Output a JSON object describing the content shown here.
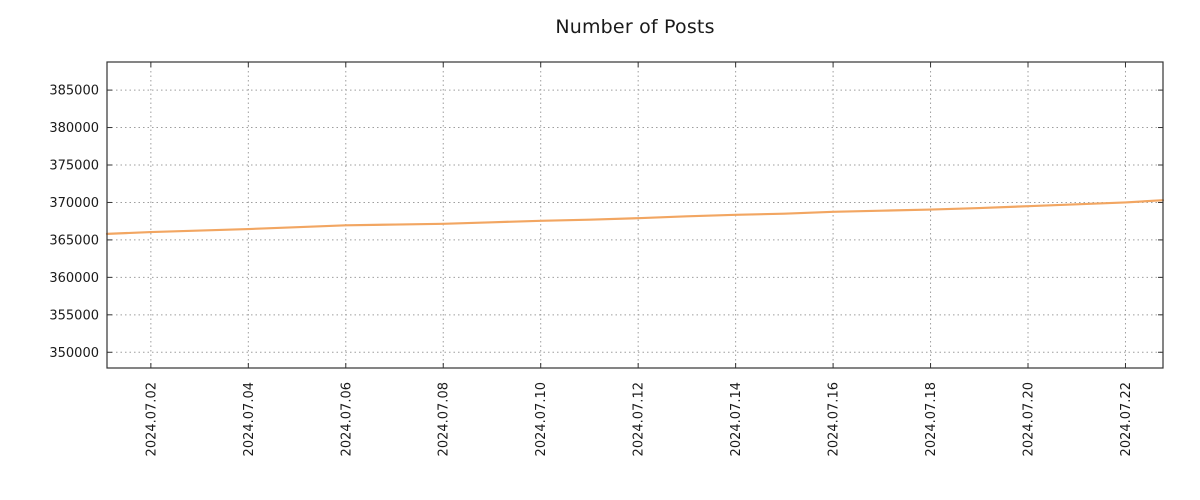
{
  "chart_data": {
    "type": "line",
    "title": "Number of Posts",
    "xlabel": "",
    "ylabel": "",
    "x_unit": "day of 2024-07",
    "xlim_days": [
      1.1,
      22.77
    ],
    "ylim": [
      347900,
      388750
    ],
    "grid": "dotted",
    "legend": "none",
    "series": [
      {
        "name": "posts",
        "color": "#f2a662",
        "x_days": [
          1.1,
          2,
          3,
          4,
          5,
          6,
          7,
          8,
          9,
          10,
          11,
          12,
          13,
          14,
          15,
          16,
          17,
          18,
          19,
          20,
          21,
          22,
          22.77
        ],
        "values": [
          365800,
          366050,
          366250,
          366450,
          366700,
          366950,
          367050,
          367150,
          367350,
          367550,
          367700,
          367900,
          368150,
          368350,
          368500,
          368750,
          368900,
          369050,
          369250,
          369500,
          369750,
          370000,
          370300
        ]
      }
    ],
    "x_tick_days": [
      2,
      4,
      6,
      8,
      10,
      12,
      14,
      16,
      18,
      20,
      22
    ],
    "x_tick_labels": [
      "2024.07.02",
      "2024.07.04",
      "2024.07.06",
      "2024.07.08",
      "2024.07.10",
      "2024.07.12",
      "2024.07.14",
      "2024.07.16",
      "2024.07.18",
      "2024.07.20",
      "2024.07.22"
    ],
    "y_ticks": [
      350000,
      355000,
      360000,
      365000,
      370000,
      375000,
      380000,
      385000
    ],
    "y_tick_labels": [
      "350000",
      "355000",
      "360000",
      "365000",
      "370000",
      "375000",
      "380000",
      "385000"
    ]
  },
  "colors": {
    "line": "#f2a662",
    "grid": "#9e9e9e",
    "border": "#333333",
    "text": "#1a1a1a",
    "background": "#ffffff"
  }
}
